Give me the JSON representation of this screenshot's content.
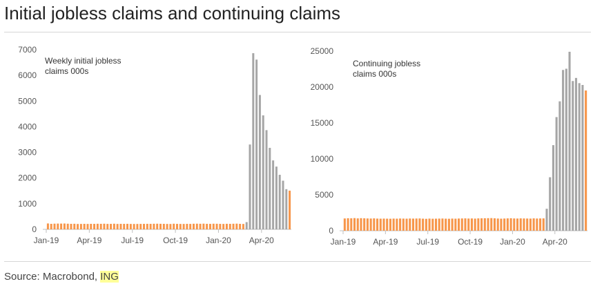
{
  "title": "Initial jobless claims and continuing claims",
  "source": {
    "prefix": "Source: Macrobond, ",
    "highlight": "ING"
  },
  "colors": {
    "pre": "#f7964a",
    "covid": "#a6a6a6",
    "latest": "#f7964a",
    "axis": "#bfbfbf"
  },
  "chart_data": [
    {
      "type": "bar",
      "annotation": [
        "Weekly initial jobless",
        "claims 000s"
      ],
      "xticks": [
        "Jan-19",
        "Apr-19",
        "Jul-19",
        "Oct-19",
        "Jan-20",
        "Apr-20"
      ],
      "ylim": [
        0,
        7000
      ],
      "yticks": [
        0,
        1000,
        2000,
        3000,
        4000,
        5000,
        6000,
        7000
      ],
      "pre_values": [
        230,
        215,
        222,
        225,
        225,
        228,
        220,
        215,
        218,
        210,
        212,
        215,
        212,
        215,
        214,
        218,
        216,
        220,
        213,
        214,
        220,
        212,
        215,
        214,
        216,
        212,
        210,
        211,
        213,
        214,
        216,
        215,
        218,
        220,
        217,
        215,
        212,
        210,
        220,
        214,
        212,
        211,
        215,
        213,
        219,
        221,
        218,
        222,
        216,
        214,
        220,
        218,
        214,
        212,
        217,
        215,
        219,
        223,
        215,
        211
      ],
      "covid_values": [
        282,
        3307,
        6867,
        6615,
        5237,
        4442,
        3867,
        3176,
        2687,
        2446,
        2126,
        1897,
        1566
      ],
      "latest_value": 1508
    },
    {
      "type": "bar",
      "annotation": [
        "Continuing jobless",
        "claims 000s"
      ],
      "xticks": [
        "Jan-19",
        "Apr-19",
        "Jul-19",
        "Oct-19",
        "Jan-20",
        "Apr-20"
      ],
      "ylim": [
        0,
        25000
      ],
      "yticks": [
        0,
        5000,
        10000,
        15000,
        20000,
        25000
      ],
      "pre_values": [
        1710,
        1740,
        1730,
        1760,
        1720,
        1750,
        1730,
        1710,
        1700,
        1720,
        1690,
        1680,
        1690,
        1680,
        1670,
        1690,
        1680,
        1700,
        1690,
        1680,
        1700,
        1690,
        1700,
        1710,
        1680,
        1660,
        1690,
        1670,
        1680,
        1690,
        1700,
        1680,
        1670,
        1690,
        1680,
        1700,
        1710,
        1720,
        1700,
        1710,
        1690,
        1720,
        1730,
        1740,
        1750,
        1760,
        1730,
        1700,
        1680,
        1700,
        1720,
        1740,
        1710,
        1700,
        1720,
        1710,
        1700,
        1690,
        1720,
        1700,
        1710,
        1720
      ],
      "covid_values": [
        3059,
        7446,
        11914,
        15819,
        18011,
        22377,
        22548,
        24912,
        20838,
        21268,
        20544,
        20289
      ],
      "latest_value": 19522
    }
  ]
}
